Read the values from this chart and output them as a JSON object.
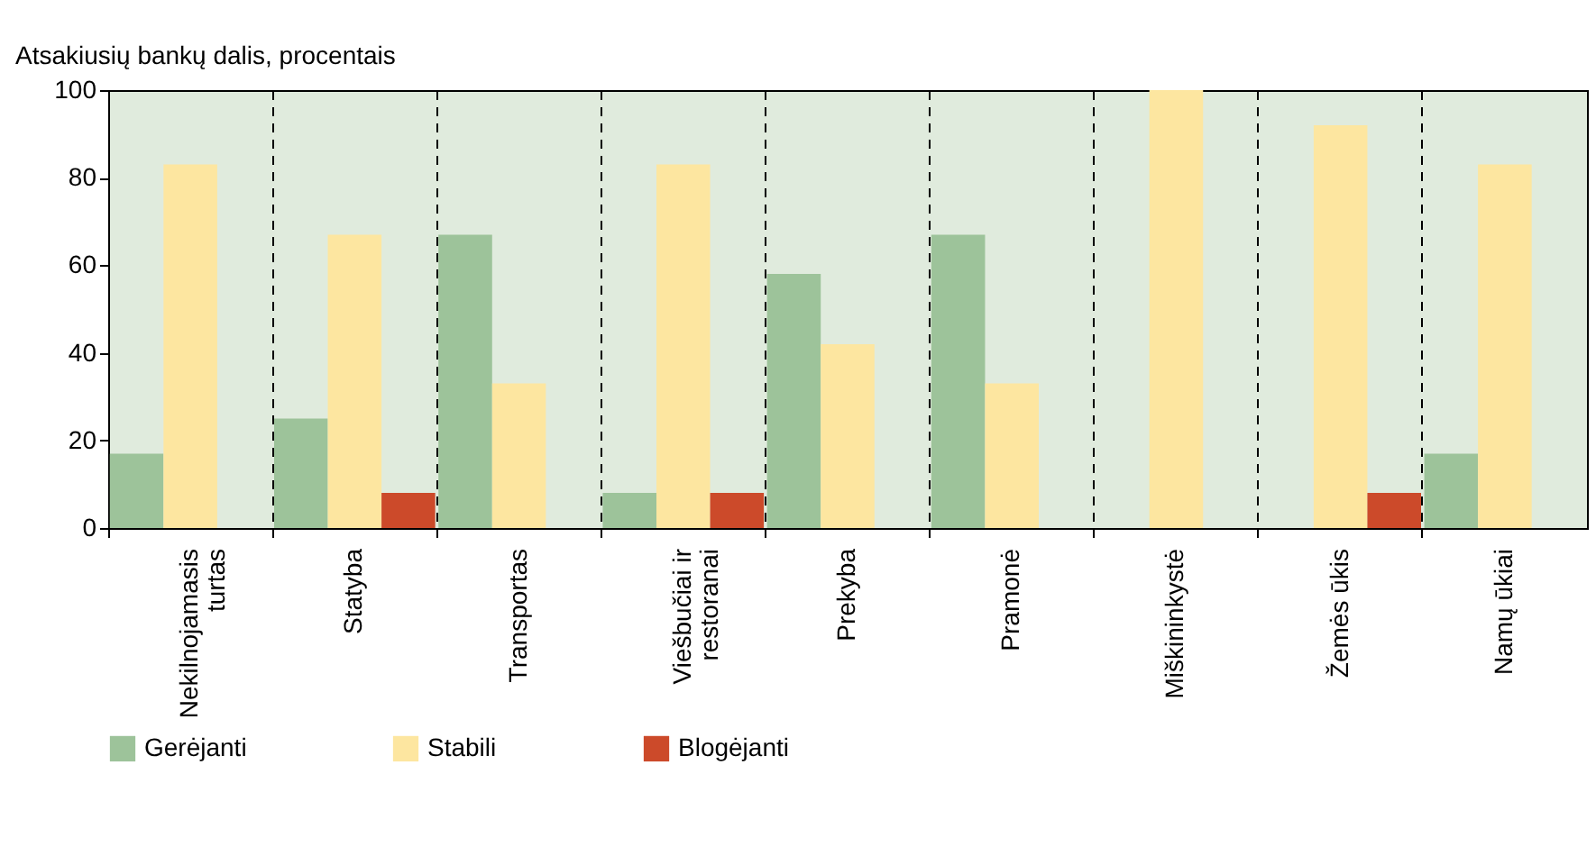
{
  "chart_data": {
    "type": "bar",
    "ylabel": "Atsakiusių bankų dalis, procentais",
    "categories": [
      "Nekilnojamasis turtas",
      "Statyba",
      "Transportas",
      "Viešbučiai ir restoranai",
      "Prekyba",
      "Pramonė",
      "Miškininkystė",
      "Žemės ūkis",
      "Namų ūkiai"
    ],
    "series": [
      {
        "name": "Gerėjanti",
        "color": "#9dc39a",
        "values": [
          17,
          25,
          67,
          8,
          58,
          67,
          0,
          0,
          17
        ]
      },
      {
        "name": "Stabili",
        "color": "#fde6a0",
        "values": [
          83,
          67,
          33,
          83,
          42,
          33,
          100,
          92,
          83
        ]
      },
      {
        "name": "Blogėjanti",
        "color": "#cc4a2a",
        "values": [
          0,
          8,
          0,
          8,
          0,
          0,
          0,
          8,
          0
        ]
      }
    ],
    "ylim": [
      0,
      100
    ],
    "yticks": [
      0,
      20,
      40,
      60,
      80,
      100
    ],
    "grid": "x",
    "legend": "bottom"
  }
}
